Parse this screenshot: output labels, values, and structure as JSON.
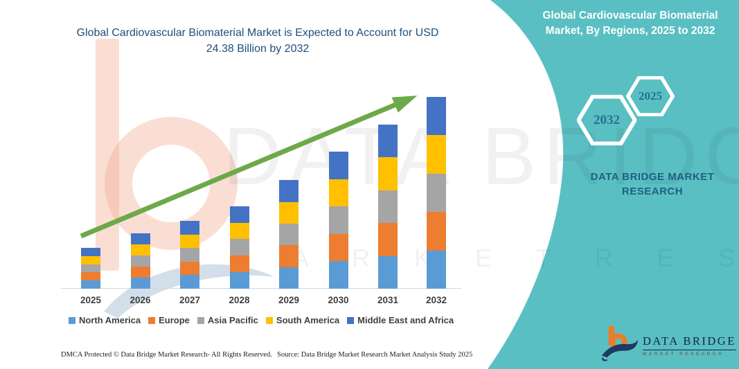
{
  "colors": {
    "teal_panel": "#5ABFC3",
    "title_blue": "#1F4E79",
    "arrow_green": "#6CA948",
    "axis_line": "#D6D6D6",
    "label_gray": "#404040",
    "logo_orange": "#E87E2B",
    "logo_navy": "#1F3864"
  },
  "left_panel": {
    "footer_left": "DMCA Protected © Data Bridge Market Research-  All Rights Reserved.",
    "footer_right": "Source: Data Bridge Market Research  Market Analysis Study 2025"
  },
  "right_panel": {
    "title": "Global Cardiovascular Biomaterial Market, By Regions, 2025 to 2032",
    "hexagons": [
      {
        "label": "2032"
      },
      {
        "label": "2025"
      }
    ],
    "brand_text": "DATA BRIDGE MARKET RESEARCH",
    "logo": {
      "name": "DATA BRIDGE",
      "sub": "MARKET RESEARCH"
    }
  },
  "watermark": {
    "line1": "DATA BRIDGE",
    "line2": "M A R K E T   R E S E A R C H"
  },
  "chart_data": {
    "type": "bar",
    "stacked": true,
    "title": "Global Cardiovascular Biomaterial Market is Expected to Account for USD 24.38 Billion by 2032",
    "unit": "USD Billion",
    "categories": [
      "2025",
      "2026",
      "2027",
      "2028",
      "2029",
      "2030",
      "2031",
      "2032"
    ],
    "series": [
      {
        "name": "North America",
        "color": "#5B9BD5",
        "values": [
          1.04,
          1.4,
          1.72,
          2.1,
          2.76,
          3.48,
          4.18,
          4.876
        ]
      },
      {
        "name": "Europe",
        "color": "#ED7D31",
        "values": [
          1.04,
          1.4,
          1.72,
          2.1,
          2.76,
          3.48,
          4.18,
          4.876
        ]
      },
      {
        "name": "Asia Pacific",
        "color": "#A5A5A5",
        "values": [
          1.04,
          1.4,
          1.72,
          2.1,
          2.76,
          3.48,
          4.18,
          4.876
        ]
      },
      {
        "name": "South America",
        "color": "#FFC000",
        "values": [
          1.04,
          1.4,
          1.72,
          2.1,
          2.76,
          3.48,
          4.18,
          4.876
        ]
      },
      {
        "name": "Middle East and Africa",
        "color": "#4472C4",
        "values": [
          1.04,
          1.4,
          1.72,
          2.1,
          2.76,
          3.48,
          4.18,
          4.876
        ]
      }
    ],
    "totals": [
      5.2,
      7.0,
      8.6,
      10.5,
      13.8,
      17.4,
      20.9,
      24.38
    ],
    "ylim": [
      0,
      24.38
    ],
    "grid": false,
    "legend_position": "bottom",
    "annotations": [
      "upward trend arrow from 2025 to 2032"
    ]
  }
}
